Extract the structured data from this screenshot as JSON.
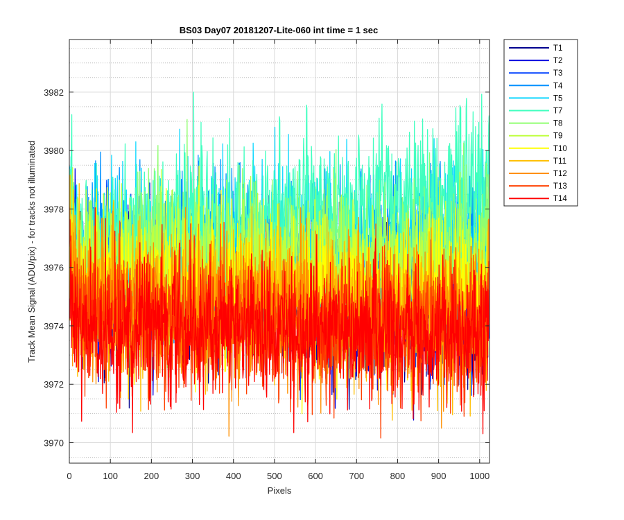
{
  "chart_data": {
    "type": "line",
    "title": "BS03 Day07 20181207-Lite-060 int time = 1 sec",
    "xlabel": "Pixels",
    "ylabel": "Track Mean Signal (ADU/pix) - for tracks not illuminated",
    "xlim": [
      0,
      1024
    ],
    "ylim": [
      3969.3,
      3983.8
    ],
    "x_ticks": [
      0,
      100,
      200,
      300,
      400,
      500,
      600,
      700,
      800,
      900,
      1000
    ],
    "y_ticks": [
      3970,
      3972,
      3974,
      3976,
      3978,
      3980,
      3982
    ],
    "grid": true,
    "minor_grid_y": true,
    "legend_placement": "outside-top-right",
    "n_points_per_series": 1024,
    "series": [
      {
        "name": "T1",
        "color": "#00008f",
        "mean_start": 3975.6,
        "mean_end": 3974.1,
        "noise_sd": 1.2
      },
      {
        "name": "T2",
        "color": "#0000e0",
        "mean_start": 3975.8,
        "mean_end": 3974.3,
        "noise_sd": 1.2
      },
      {
        "name": "T3",
        "color": "#0040ff",
        "mean_start": 3976.0,
        "mean_end": 3975.0,
        "noise_sd": 1.2
      },
      {
        "name": "T4",
        "color": "#0090ff",
        "mean_start": 3976.3,
        "mean_end": 3976.6,
        "noise_sd": 1.3
      },
      {
        "name": "T5",
        "color": "#10d8ff",
        "mean_start": 3976.4,
        "mean_end": 3977.0,
        "noise_sd": 1.3
      },
      {
        "name": "T7",
        "color": "#40ffbf",
        "mean_start": 3976.7,
        "mean_end": 3978.8,
        "noise_sd": 1.3
      },
      {
        "name": "T8",
        "color": "#90ff70",
        "mean_start": 3976.2,
        "mean_end": 3976.6,
        "noise_sd": 1.2
      },
      {
        "name": "T9",
        "color": "#c0ff40",
        "mean_start": 3975.9,
        "mean_end": 3975.9,
        "noise_sd": 1.2
      },
      {
        "name": "T10",
        "color": "#ffff00",
        "mean_start": 3975.4,
        "mean_end": 3975.0,
        "noise_sd": 1.2
      },
      {
        "name": "T11",
        "color": "#ffbf00",
        "mean_start": 3974.9,
        "mean_end": 3974.4,
        "noise_sd": 1.2
      },
      {
        "name": "T12",
        "color": "#ff9000",
        "mean_start": 3974.6,
        "mean_end": 3974.1,
        "noise_sd": 1.2
      },
      {
        "name": "T13",
        "color": "#ff4000",
        "mean_start": 3974.3,
        "mean_end": 3973.9,
        "noise_sd": 1.2
      },
      {
        "name": "T14",
        "color": "#ff0000",
        "mean_start": 3974.1,
        "mean_end": 3973.7,
        "noise_sd": 1.2
      }
    ]
  }
}
